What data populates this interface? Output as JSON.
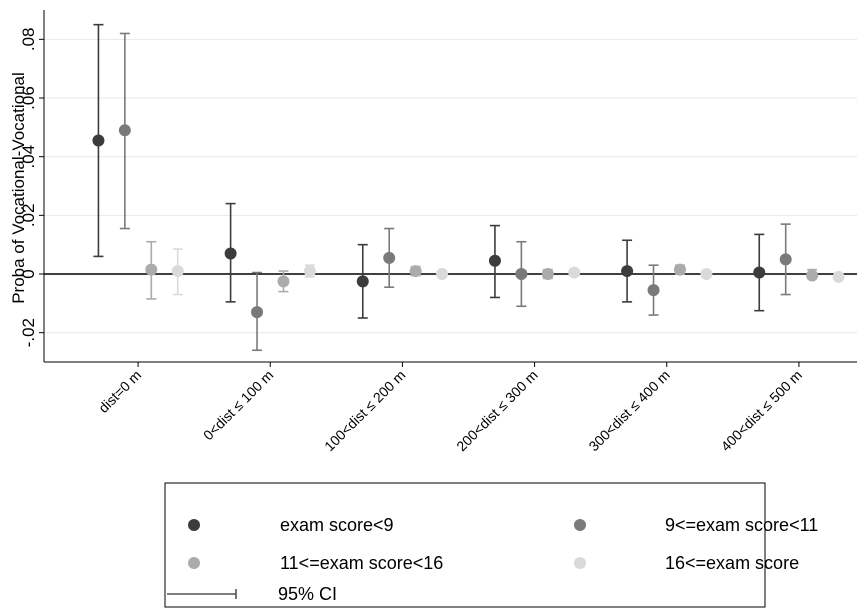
{
  "chart_data": {
    "type": "errorbar",
    "y_label": "Proba of Vocational-Vocational",
    "categories": [
      "dist=0 m",
      "0<dist ≤ 100 m",
      "100<dist ≤ 200 m",
      "200<dist ≤ 300 m",
      "300<dist ≤ 400 m",
      "400<dist ≤ 500 m"
    ],
    "series": [
      {
        "name": "exam score<9",
        "color": "#3c3c3c",
        "values": [
          0.0455,
          0.007,
          -0.0025,
          0.0045,
          0.001,
          0.0005
        ],
        "lower": [
          0.006,
          -0.0095,
          -0.015,
          -0.008,
          -0.0095,
          -0.0125
        ],
        "upper": [
          0.085,
          0.024,
          0.01,
          0.0165,
          0.0115,
          0.0135
        ]
      },
      {
        "name": "9<=exam score<11",
        "color": "#7a7a7a",
        "values": [
          0.049,
          -0.013,
          0.0055,
          0.0,
          -0.0055,
          0.005
        ],
        "lower": [
          0.0155,
          -0.026,
          -0.0045,
          -0.011,
          -0.014,
          -0.007
        ],
        "upper": [
          0.082,
          0.0005,
          0.0155,
          0.011,
          0.003,
          0.017
        ]
      },
      {
        "name": "11<=exam score<16",
        "color": "#ababab",
        "values": [
          0.0015,
          -0.0025,
          0.001,
          0.0,
          0.0015,
          -0.0005
        ],
        "lower": [
          -0.0085,
          -0.006,
          -0.0005,
          -0.0015,
          0.0,
          -0.0015
        ],
        "upper": [
          0.011,
          0.001,
          0.0025,
          0.0015,
          0.003,
          0.0015
        ]
      },
      {
        "name": "16<=exam score",
        "color": "#dadada",
        "values": [
          0.001,
          0.001,
          0.0,
          0.0005,
          0.0,
          -0.001
        ],
        "lower": [
          -0.007,
          -0.001,
          -0.0005,
          -0.0005,
          -0.0005,
          -0.0015
        ],
        "upper": [
          0.0085,
          0.003,
          0.0005,
          0.0015,
          0.0005,
          -0.0005
        ]
      }
    ],
    "ci_label": "95% CI",
    "ylim": [
      -0.03,
      0.09
    ],
    "yticks": [
      {
        "value": -0.02,
        "label": "-.02"
      },
      0,
      {
        "value": 0.02,
        "label": ".02"
      },
      {
        "value": 0.04,
        "label": ".04"
      },
      {
        "value": 0.06,
        "label": ".06"
      },
      {
        "value": 0.08,
        "label": ".08"
      }
    ],
    "grid": true
  }
}
